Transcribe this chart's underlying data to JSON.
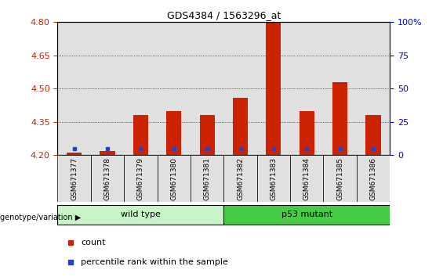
{
  "title": "GDS4384 / 1563296_at",
  "samples": [
    "GSM671377",
    "GSM671378",
    "GSM671379",
    "GSM671380",
    "GSM671381",
    "GSM671382",
    "GSM671383",
    "GSM671384",
    "GSM671385",
    "GSM671386"
  ],
  "red_values": [
    4.21,
    4.22,
    4.38,
    4.4,
    4.38,
    4.46,
    4.8,
    4.4,
    4.53,
    4.38
  ],
  "blue_values": [
    4.23,
    4.23,
    4.23,
    4.23,
    4.23,
    4.23,
    4.23,
    4.23,
    4.23,
    4.23
  ],
  "ymin": 4.2,
  "ymax": 4.8,
  "yticks_left": [
    4.2,
    4.35,
    4.5,
    4.65,
    4.8
  ],
  "yticks_right": [
    0,
    25,
    50,
    75,
    100
  ],
  "groups": [
    {
      "label": "wild type",
      "indices": [
        0,
        1,
        2,
        3,
        4
      ],
      "color": "#c8f5c8"
    },
    {
      "label": "p53 mutant",
      "indices": [
        5,
        6,
        7,
        8,
        9
      ],
      "color": "#44cc44"
    }
  ],
  "bar_width": 0.45,
  "bar_color_red": "#cc2200",
  "bar_color_blue": "#2244cc",
  "grid_color": "#000000",
  "axis_label_color_left": "#cc2200",
  "axis_label_color_right": "#0000cc",
  "bg_color_bars": "#e0e0e0",
  "legend_entries": [
    "count",
    "percentile rank within the sample"
  ],
  "genotype_label": "genotype/variation"
}
